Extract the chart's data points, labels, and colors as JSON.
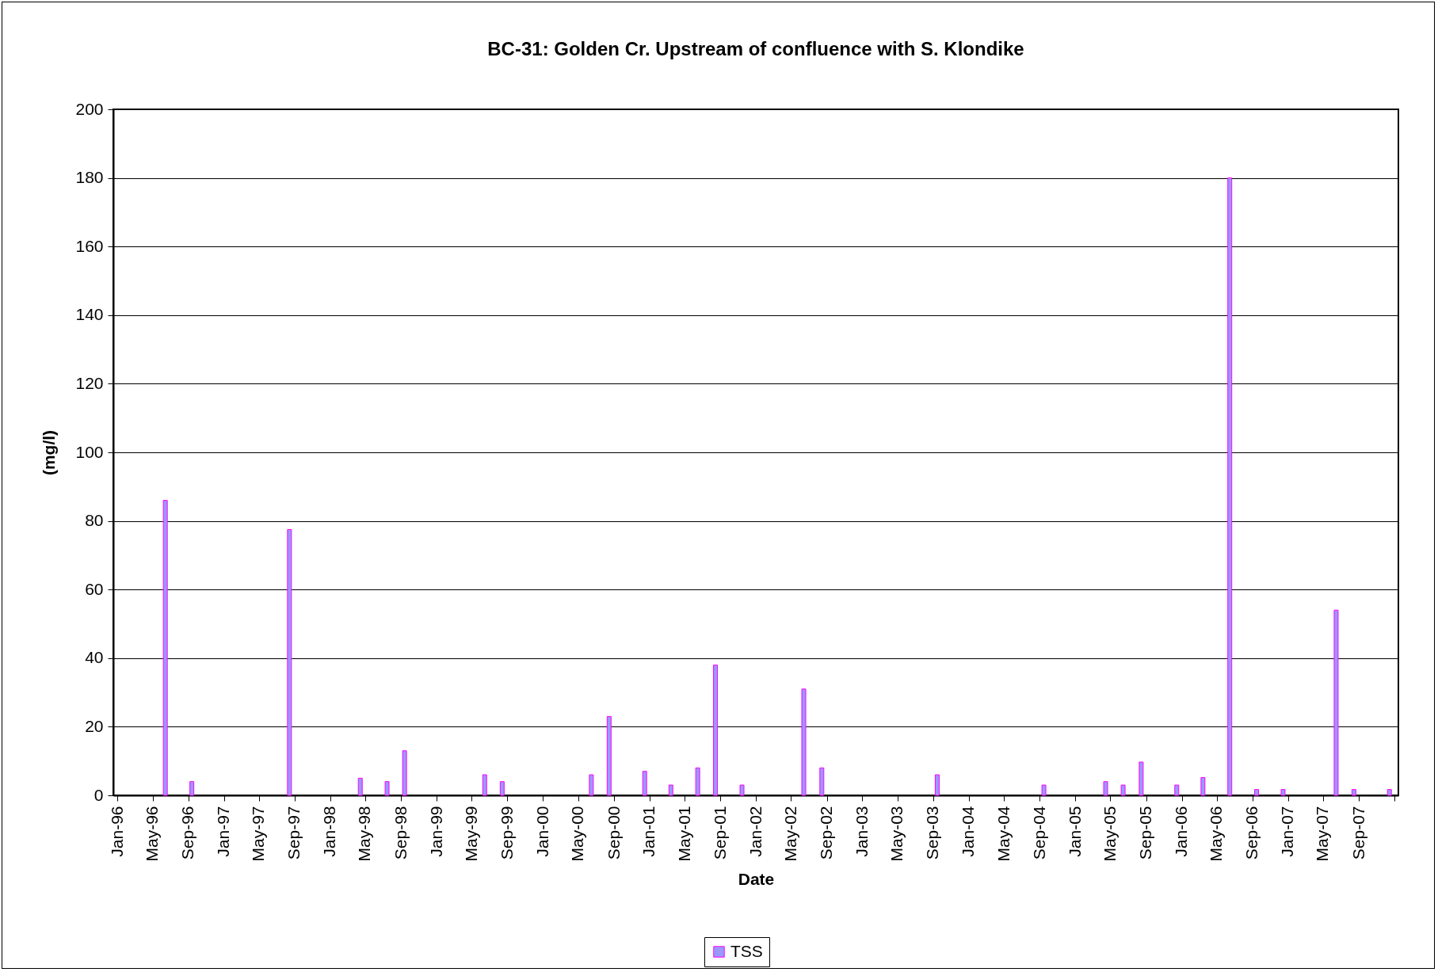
{
  "chart_data": {
    "type": "bar",
    "title": "BC-31: Golden Cr. Upstream of confluence with S. Klondike",
    "xlabel": "Date",
    "ylabel": "(mg/l)",
    "x": [
      "1996-06-14",
      "1996-09-13",
      "1997-08-14",
      "1998-04-14",
      "1998-07-15",
      "1998-09-13",
      "1999-06-15",
      "1999-08-14",
      "2000-06-15",
      "2000-08-15",
      "2000-12-15",
      "2001-03-15",
      "2001-06-15",
      "2001-08-15",
      "2001-11-14",
      "2002-06-14",
      "2002-08-15",
      "2003-09-15",
      "2004-09-15",
      "2005-04-15",
      "2005-06-14",
      "2005-08-15",
      "2005-12-15",
      "2006-03-15",
      "2006-06-15",
      "2006-09-15",
      "2006-12-15",
      "2007-06-15",
      "2007-08-15",
      "2007-12-15"
    ],
    "series": [
      {
        "name": "TSS",
        "color": "#9999ff",
        "values": [
          86,
          4,
          77.5,
          5,
          4,
          13,
          6,
          4,
          6,
          23,
          7,
          3,
          8,
          38,
          3,
          31,
          8,
          6,
          3,
          4,
          3,
          9.7,
          3,
          5.2,
          180,
          1.7,
          1.7,
          54,
          1.7,
          1.7
        ]
      }
    ],
    "xlim": [
      "1996-01-01",
      "2008-01-01"
    ],
    "xticks": [
      {
        "value": "1996-01-01",
        "label": "Jan-96"
      },
      {
        "value": "1996-05-01",
        "label": "May-96"
      },
      {
        "value": "1996-09-01",
        "label": "Sep-96"
      },
      {
        "value": "1997-01-01",
        "label": "Jan-97"
      },
      {
        "value": "1997-05-01",
        "label": "May-97"
      },
      {
        "value": "1997-09-01",
        "label": "Sep-97"
      },
      {
        "value": "1998-01-01",
        "label": "Jan-98"
      },
      {
        "value": "1998-05-01",
        "label": "May-98"
      },
      {
        "value": "1998-09-01",
        "label": "Sep-98"
      },
      {
        "value": "1999-01-01",
        "label": "Jan-99"
      },
      {
        "value": "1999-05-01",
        "label": "May-99"
      },
      {
        "value": "1999-09-01",
        "label": "Sep-99"
      },
      {
        "value": "2000-01-01",
        "label": "Jan-00"
      },
      {
        "value": "2000-05-01",
        "label": "May-00"
      },
      {
        "value": "2000-09-01",
        "label": "Sep-00"
      },
      {
        "value": "2001-01-01",
        "label": "Jan-01"
      },
      {
        "value": "2001-05-01",
        "label": "May-01"
      },
      {
        "value": "2001-09-01",
        "label": "Sep-01"
      },
      {
        "value": "2002-01-01",
        "label": "Jan-02"
      },
      {
        "value": "2002-05-01",
        "label": "May-02"
      },
      {
        "value": "2002-09-01",
        "label": "Sep-02"
      },
      {
        "value": "2003-01-01",
        "label": "Jan-03"
      },
      {
        "value": "2003-05-01",
        "label": "May-03"
      },
      {
        "value": "2003-09-01",
        "label": "Sep-03"
      },
      {
        "value": "2004-01-01",
        "label": "Jan-04"
      },
      {
        "value": "2004-05-01",
        "label": "May-04"
      },
      {
        "value": "2004-09-01",
        "label": "Sep-04"
      },
      {
        "value": "2005-01-01",
        "label": "Jan-05"
      },
      {
        "value": "2005-05-01",
        "label": "May-05"
      },
      {
        "value": "2005-09-01",
        "label": "Sep-05"
      },
      {
        "value": "2006-01-01",
        "label": "Jan-06"
      },
      {
        "value": "2006-05-01",
        "label": "May-06"
      },
      {
        "value": "2006-09-01",
        "label": "Sep-06"
      },
      {
        "value": "2007-01-01",
        "label": "Jan-07"
      },
      {
        "value": "2007-05-01",
        "label": "May-07"
      },
      {
        "value": "2007-09-01",
        "label": "Sep-07"
      },
      {
        "value": "2008-01-01",
        "label": null
      }
    ],
    "ylim": [
      0,
      200
    ],
    "yticks": [
      0,
      20,
      40,
      60,
      80,
      100,
      120,
      140,
      160,
      180,
      200
    ],
    "grid": "y",
    "legend": "bottom"
  }
}
